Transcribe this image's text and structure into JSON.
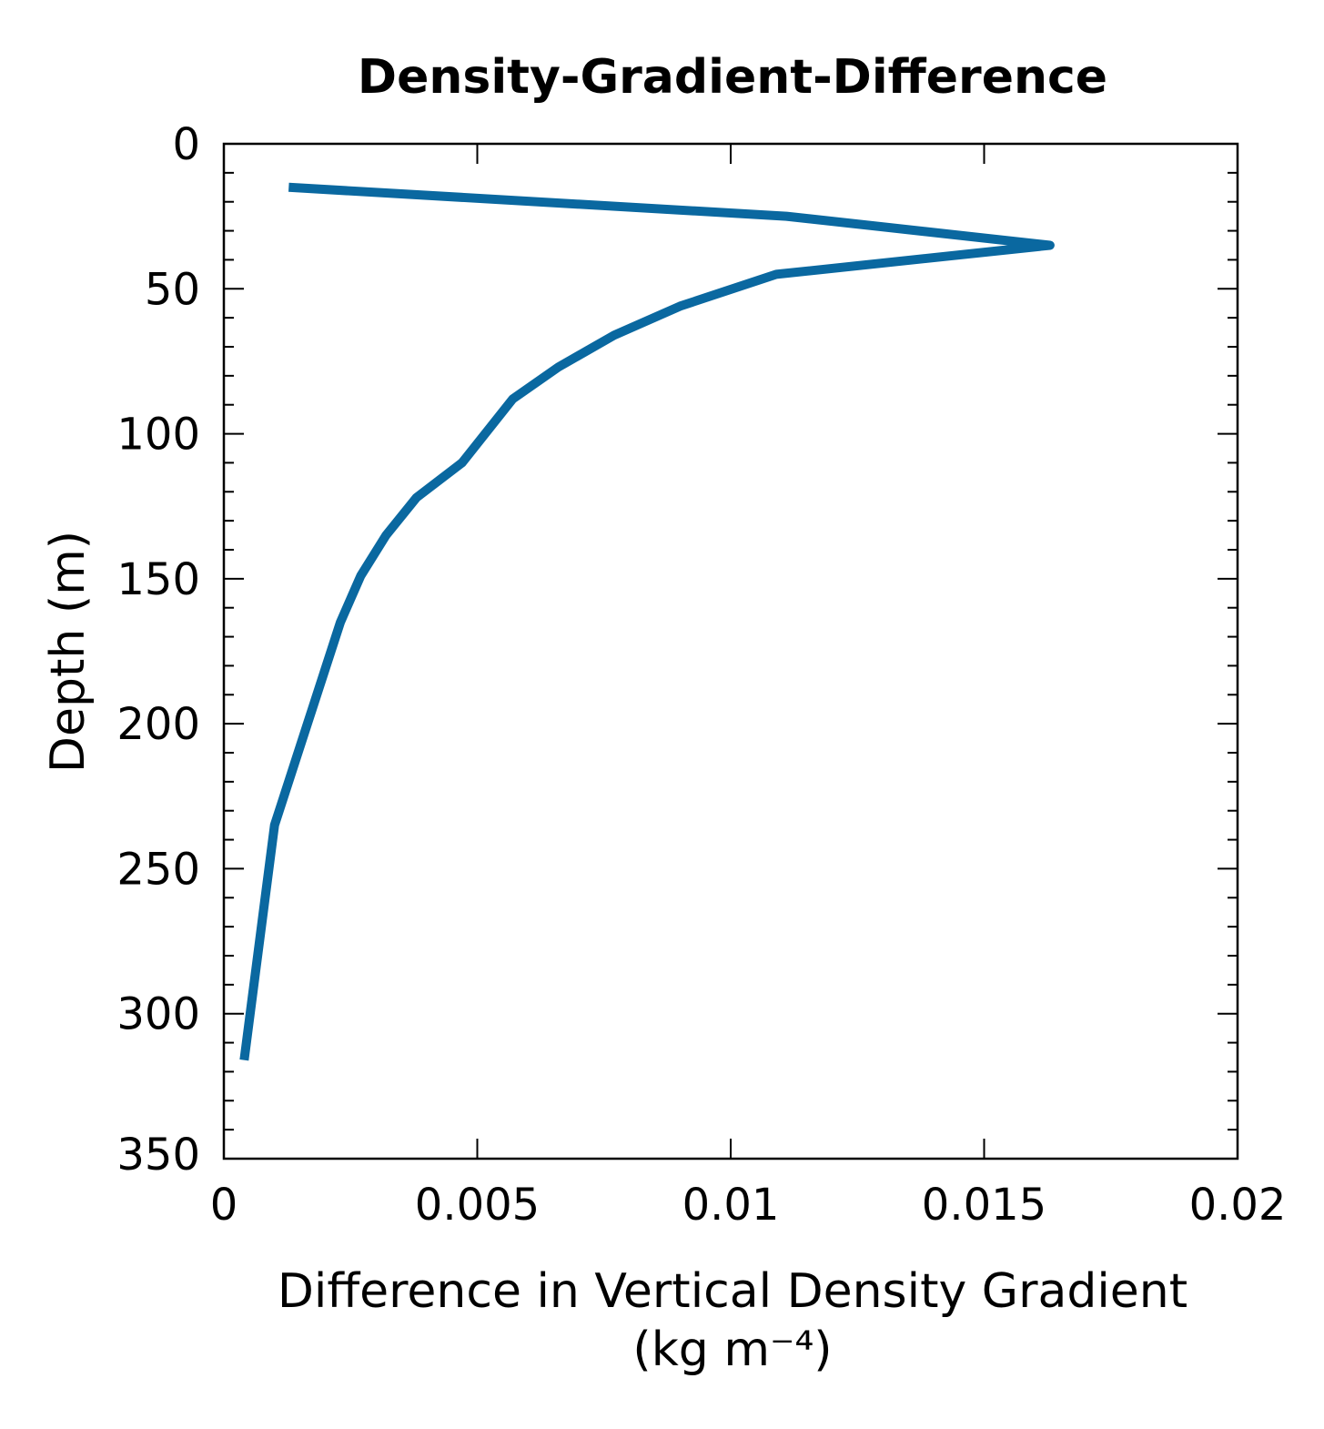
{
  "chart_data": {
    "type": "line",
    "title": "Density-Gradient-Difference",
    "xlabel": "Difference in Vertical Density Gradient",
    "xlabel_unit": "(kg m⁻⁴)",
    "ylabel": "Depth (m)",
    "xlim": [
      0,
      0.02
    ],
    "ylim": [
      0,
      350
    ],
    "y_inverted": true,
    "x_ticks": [
      "0",
      "0.005",
      "0.01",
      "0.015",
      "0.02"
    ],
    "x_tick_values": [
      0,
      0.005,
      0.01,
      0.015,
      0.02
    ],
    "y_ticks": [
      "0",
      "50",
      "100",
      "150",
      "200",
      "250",
      "300",
      "350"
    ],
    "y_tick_values": [
      0,
      50,
      100,
      150,
      200,
      250,
      300,
      350
    ],
    "grid": false,
    "color": "#0a68a0",
    "series": [
      {
        "x": [
          0.00128,
          0.0111,
          0.0163,
          0.0109,
          0.009,
          0.0077,
          0.0066,
          0.0057,
          0.0047,
          0.0038,
          0.0032,
          0.0027,
          0.0023,
          0.0015,
          0.001,
          0.0004
        ],
        "y": [
          15,
          25,
          35,
          45,
          56,
          66,
          77,
          88,
          110,
          122,
          135,
          149,
          165,
          208,
          235,
          316
        ]
      }
    ]
  }
}
